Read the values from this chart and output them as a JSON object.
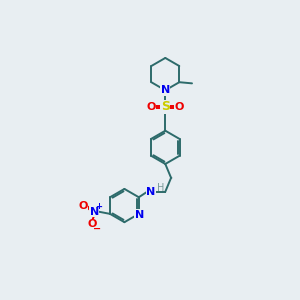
{
  "background_color": "#e8eef2",
  "bond_color": "#2d6b6b",
  "N_color": "#0000ee",
  "S_color": "#cccc00",
  "O_color": "#ee0000",
  "H_color": "#7a9a9a",
  "lw": 1.4,
  "fs": 7.5,
  "xlim": [
    0,
    10
  ],
  "ylim": [
    0,
    10
  ]
}
